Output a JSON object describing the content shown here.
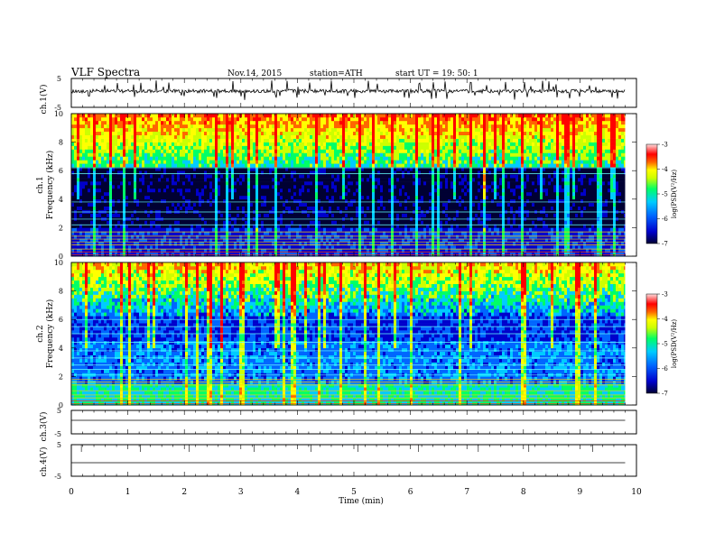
{
  "header": {
    "title": "VLF  Spectra",
    "date": "Nov.14, 2015",
    "station": "station=ATH",
    "start_ut": "start  UT  =   19: 50: 1"
  },
  "colorbar": {
    "label": "log(PSD(V²/Hz)",
    "ticks": [
      "-3",
      "-4",
      "-5",
      "-6",
      "-7"
    ]
  },
  "colors": {
    "scale": [
      "#000033",
      "#0000cc",
      "#0066ff",
      "#00ccff",
      "#00ff66",
      "#ccff00",
      "#ffff00",
      "#ff6600",
      "#ff0000",
      "#ffffff"
    ]
  },
  "chart_data": [
    {
      "type": "line",
      "panel": "ch1",
      "ylabel": "ch.1(V)",
      "yticks": [
        "5",
        "-5"
      ],
      "ylim": [
        -5,
        5
      ],
      "xlim": [
        0,
        10
      ],
      "description_values": "noisy waveform around +0.5 V with spikes"
    },
    {
      "type": "heatmap",
      "panel": "ch1-spectrogram",
      "ylabel": [
        "ch.1",
        "Frequency  (kHz)"
      ],
      "yticks": [
        "0",
        "2",
        "4",
        "6",
        "8",
        "10"
      ],
      "ylim": [
        0,
        10
      ],
      "xlim": [
        0,
        9.8
      ],
      "zlim": [
        -7,
        -3
      ]
    },
    {
      "type": "heatmap",
      "panel": "ch2-spectrogram",
      "ylabel": [
        "ch.2",
        "Frequency  (kHz)"
      ],
      "yticks": [
        "0",
        "2",
        "4",
        "6",
        "8",
        "10"
      ],
      "ylim": [
        0,
        10
      ],
      "xlim": [
        0,
        9.8
      ],
      "zlim": [
        -7,
        -3
      ]
    },
    {
      "type": "line",
      "panel": "ch3",
      "ylabel": "ch.3(V)",
      "yticks": [
        "5",
        "-5"
      ],
      "ylim": [
        -5,
        5
      ],
      "xlim": [
        0,
        10
      ]
    },
    {
      "type": "line",
      "panel": "ch4",
      "ylabel": "ch.4(V)",
      "yticks": [
        "5",
        "-5"
      ],
      "ylim": [
        -5,
        5
      ],
      "xlim": [
        0,
        10
      ]
    }
  ],
  "xaxis": {
    "label": "Time  (min)",
    "ticks": [
      "0",
      "1",
      "2",
      "3",
      "4",
      "5",
      "6",
      "7",
      "8",
      "9",
      "10"
    ]
  }
}
